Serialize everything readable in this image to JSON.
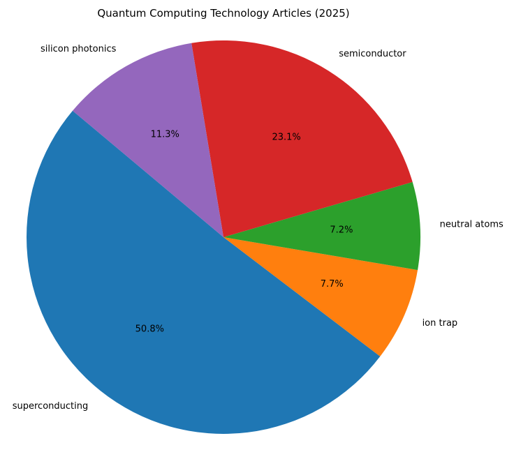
{
  "chart_data": {
    "type": "pie",
    "title": "Quantum Computing Technology Articles (2025)",
    "slices": [
      {
        "label": "superconducting",
        "percent": 50.8,
        "display": "50.8%",
        "color": "#1f77b4"
      },
      {
        "label": "ion trap",
        "percent": 7.7,
        "display": "7.7%",
        "color": "#ff7f0e"
      },
      {
        "label": "neutral atoms",
        "percent": 7.2,
        "display": "7.2%",
        "color": "#2ca02c"
      },
      {
        "label": "semiconductor",
        "percent": 23.1,
        "display": "23.1%",
        "color": "#d62728"
      },
      {
        "label": "silicon photonics",
        "percent": 11.3,
        "display": "11.3%",
        "color": "#9467bd"
      }
    ],
    "start_angle_deg": 140,
    "direction": "counterclockwise",
    "legend": "none"
  }
}
